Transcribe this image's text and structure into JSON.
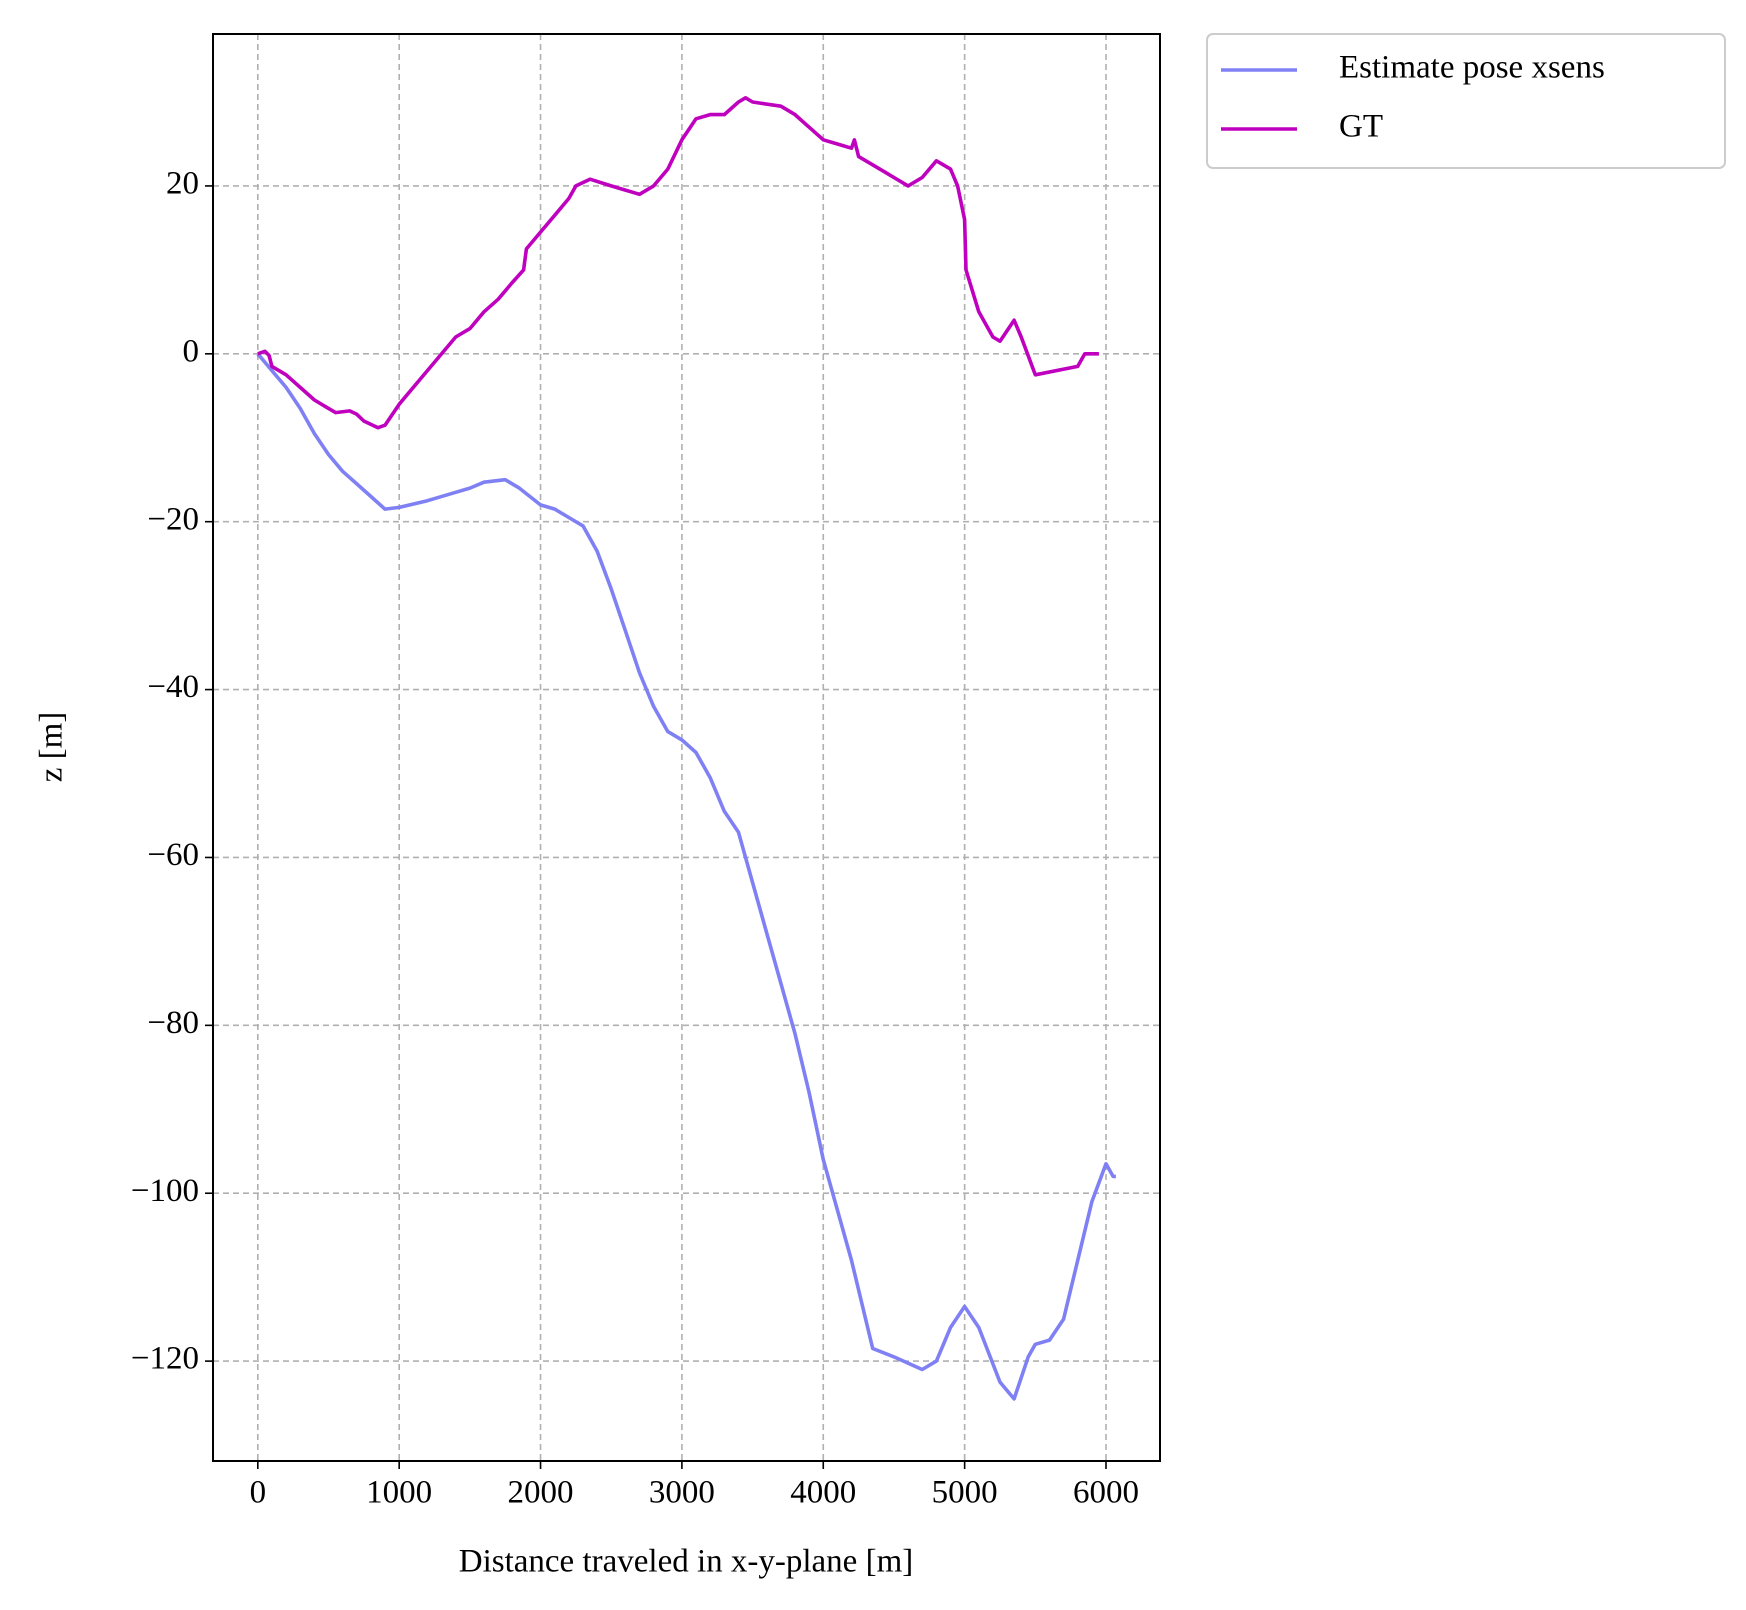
{
  "chart_data": {
    "type": "line",
    "xlabel": "Distance traveled in x-y-plane [m]",
    "ylabel": "z [m]",
    "xlim": [
      -317,
      6382
    ],
    "ylim": [
      -131.9,
      38.1
    ],
    "xticks": [
      0,
      1000,
      2000,
      3000,
      4000,
      5000,
      6000
    ],
    "yticks": [
      {
        "value": -120,
        "label": "−120"
      },
      {
        "value": -100,
        "label": "−100"
      },
      {
        "value": -80,
        "label": "−80"
      },
      {
        "value": -60,
        "label": "−60"
      },
      {
        "value": -40,
        "label": "−40"
      },
      {
        "value": -20,
        "label": "−20"
      },
      0,
      20
    ],
    "grid": true,
    "legend": "outside upper right",
    "series": [
      {
        "name": "Estimate pose xsens",
        "color": "#8080f5",
        "x": [
          0,
          100,
          200,
          300,
          400,
          500,
          600,
          700,
          800,
          900,
          1000,
          1200,
          1400,
          1500,
          1600,
          1750,
          1850,
          2000,
          2100,
          2200,
          2300,
          2400,
          2500,
          2600,
          2700,
          2800,
          2900,
          3000,
          3100,
          3200,
          3300,
          3400,
          3500,
          3600,
          3700,
          3800,
          3900,
          4000,
          4200,
          4350,
          4500,
          4700,
          4800,
          4900,
          5000,
          5100,
          5250,
          5350,
          5450,
          5500,
          5600,
          5700,
          5800,
          5900,
          6000,
          6050,
          6070
        ],
        "values": [
          0,
          -2,
          -4,
          -6.5,
          -9.5,
          -12,
          -14,
          -15.5,
          -17,
          -18.5,
          -18.3,
          -17.5,
          -16.5,
          -16,
          -15.3,
          -15,
          -16,
          -18,
          -18.5,
          -19.5,
          -20.5,
          -23.5,
          -28,
          -33,
          -38,
          -42,
          -45,
          -46,
          -47.5,
          -50.5,
          -54.5,
          -57,
          -63,
          -69,
          -75,
          -81,
          -88,
          -96,
          -108,
          -118.5,
          -119.5,
          -121,
          -120,
          -116,
          -113.5,
          -116,
          -122.5,
          -124.5,
          -119.5,
          -118,
          -117.5,
          -115,
          -108,
          -101,
          -96.5,
          -98,
          -98
        ]
      },
      {
        "name": "GT",
        "color": "#bf00bf",
        "x": [
          0,
          50,
          80,
          100,
          200,
          300,
          400,
          500,
          550,
          650,
          700,
          750,
          850,
          900,
          1000,
          1200,
          1400,
          1500,
          1600,
          1700,
          1800,
          1880,
          1900,
          2000,
          2100,
          2200,
          2250,
          2350,
          2500,
          2600,
          2700,
          2800,
          2900,
          3000,
          3100,
          3200,
          3300,
          3400,
          3450,
          3500,
          3700,
          3800,
          3900,
          4000,
          4100,
          4200,
          4220,
          4250,
          4400,
          4600,
          4700,
          4800,
          4900,
          4950,
          5000,
          5010,
          5100,
          5200,
          5250,
          5350,
          5400,
          5500,
          5800,
          5850,
          5900,
          5950
        ],
        "values": [
          0,
          0.3,
          -0.2,
          -1.5,
          -2.5,
          -4,
          -5.5,
          -6.5,
          -7,
          -6.8,
          -7.2,
          -8,
          -8.8,
          -8.5,
          -6,
          -2,
          2,
          3,
          5,
          6.5,
          8.5,
          10,
          12.5,
          14.5,
          16.5,
          18.5,
          20,
          20.8,
          20,
          19.5,
          19,
          20,
          22,
          25.5,
          28,
          28.5,
          28.5,
          30,
          30.5,
          30,
          29.5,
          28.5,
          27,
          25.5,
          25,
          24.5,
          25.5,
          23.5,
          22,
          20,
          21,
          23,
          22,
          20,
          16,
          10,
          5,
          2,
          1.5,
          4,
          2,
          -2.5,
          -1.5,
          0,
          0,
          0
        ]
      }
    ]
  }
}
